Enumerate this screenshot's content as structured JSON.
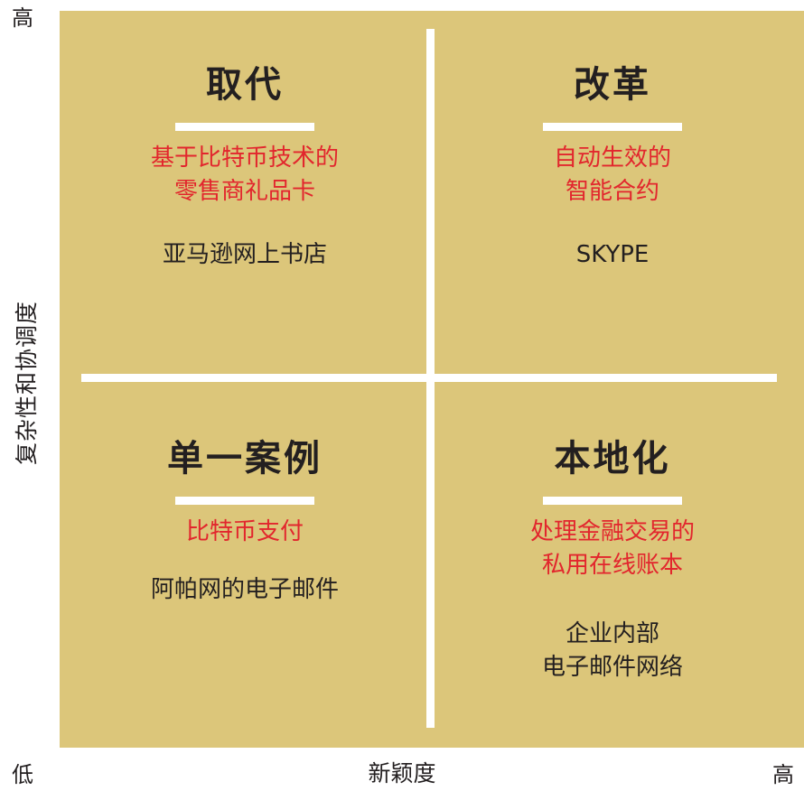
{
  "axes": {
    "y_title": "复杂性和协调度",
    "y_high": "高",
    "x_title": "新颖度",
    "x_low": "低",
    "x_high": "高"
  },
  "quadrants": {
    "top_left": {
      "title": "取代",
      "example_red": [
        "基于比特币技术的",
        "零售商礼品卡"
      ],
      "example_black": [
        "亚马逊网上书店"
      ]
    },
    "top_right": {
      "title": "改革",
      "example_red": [
        "自动生效的",
        "智能合约"
      ],
      "example_black": [
        "SKYPE"
      ]
    },
    "bottom_left": {
      "title": "单一案例",
      "example_red": [
        "比特币支付"
      ],
      "example_black": [
        "阿帕网的电子邮件"
      ]
    },
    "bottom_right": {
      "title": "本地化",
      "example_red": [
        "处理金融交易的",
        "私用在线账本"
      ],
      "example_black": [
        "企业内部",
        "电子邮件网络"
      ]
    }
  },
  "colors": {
    "background": "#dcc67a",
    "divider": "#ffffff",
    "highlight_text": "#e2262d",
    "body_text": "#231f20"
  }
}
